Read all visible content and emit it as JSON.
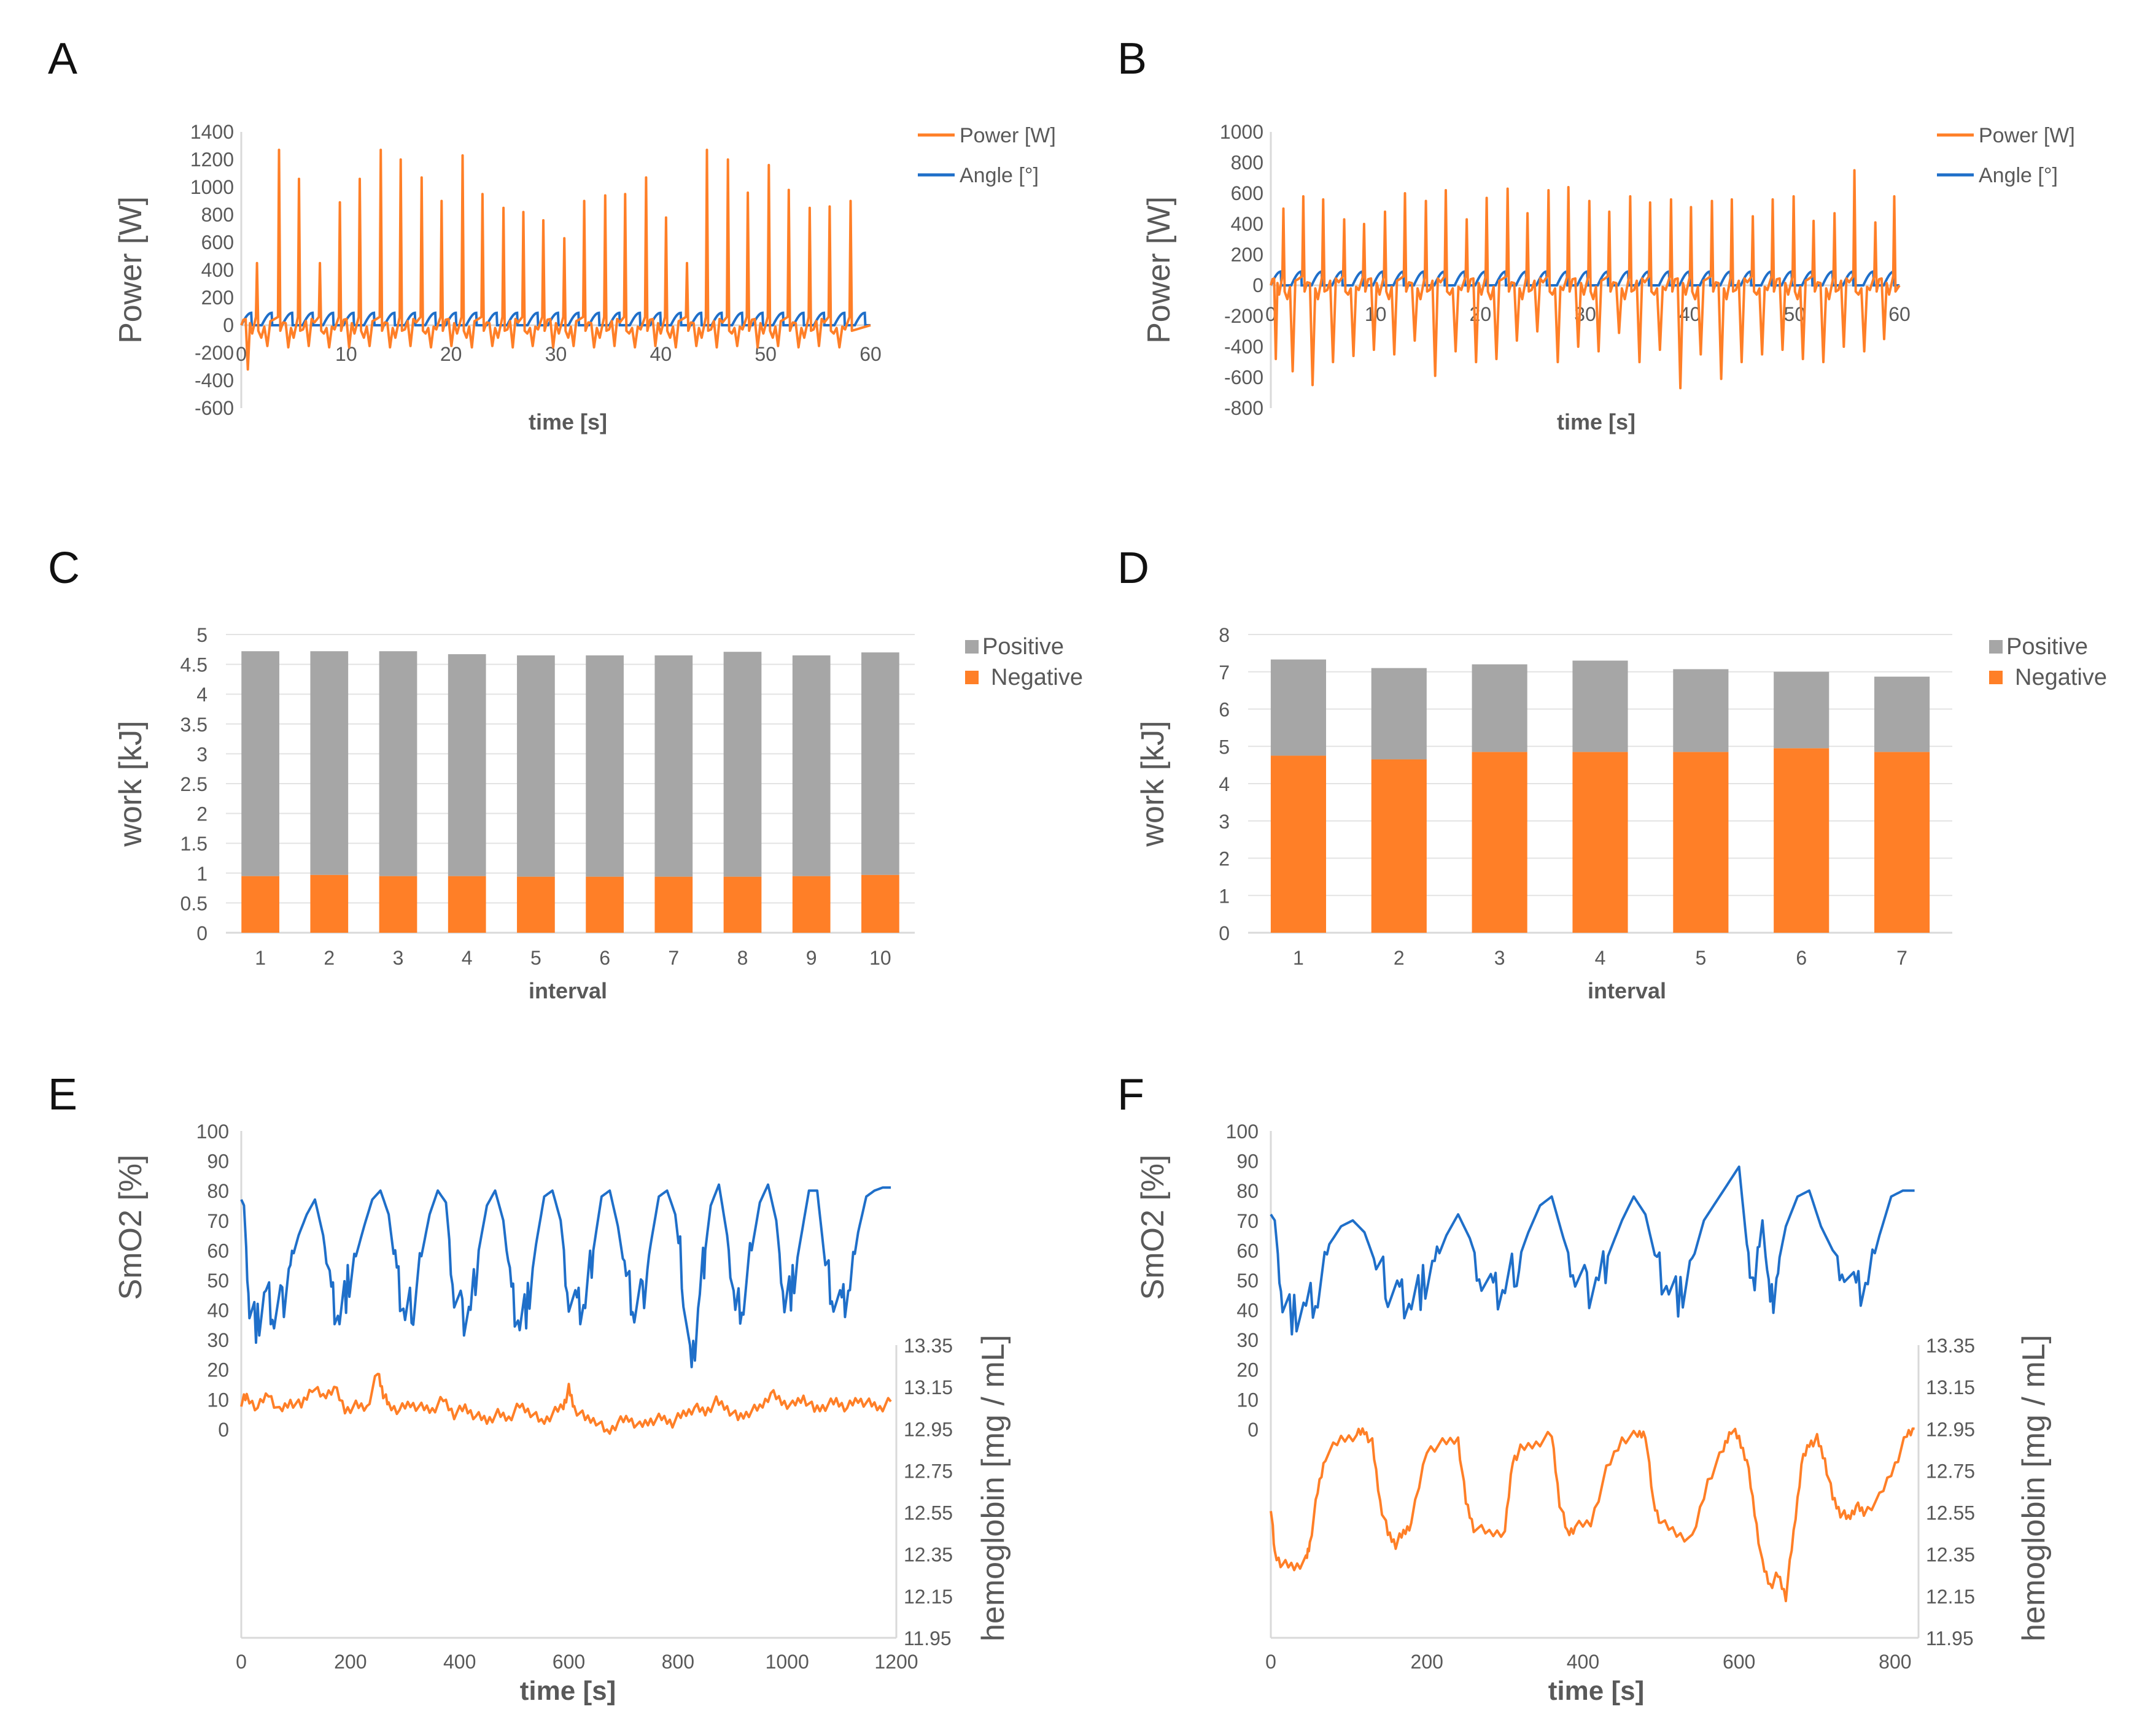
{
  "colors": {
    "orange": "#ff7f27",
    "blue": "#1f6fc9",
    "gray": "#a6a6a6",
    "text": "#595959",
    "axis": "#d9d9d9"
  },
  "chart_data": [
    {
      "panel": "A",
      "type": "line",
      "xlabel": "time [s]",
      "ylabel": "Power [W]",
      "xlim": [
        0,
        60
      ],
      "ylim": [
        -600,
        1400
      ],
      "xticks": [
        "0",
        "10",
        "20",
        "30",
        "40",
        "50",
        "60"
      ],
      "yticks": [
        "-600",
        "-400",
        "-200",
        "0",
        "200",
        "400",
        "600",
        "800",
        "1000",
        "1200",
        "1400"
      ],
      "legend": [
        "Power [W]",
        "Angle [°]"
      ],
      "series": [
        {
          "name": "Power [W]",
          "peak_times": [
            1.5,
            3.6,
            5.5,
            7.5,
            9.4,
            11.3,
            13.3,
            15.2,
            17.2,
            19.1,
            21.1,
            23.0,
            25.0,
            26.9,
            28.8,
            30.8,
            32.7,
            34.7,
            36.6,
            38.6,
            40.5,
            42.5,
            44.4,
            46.4,
            48.3,
            50.3,
            52.2,
            54.2,
            56.1,
            58.1
          ],
          "peak_values": [
            450,
            1270,
            1060,
            450,
            890,
            1060,
            1270,
            1200,
            1070,
            900,
            1230,
            950,
            850,
            820,
            760,
            630,
            900,
            940,
            950,
            1070,
            780,
            450,
            1270,
            1200,
            960,
            1160,
            980,
            850,
            860,
            900
          ],
          "min_values": [
            -320,
            -150,
            -160,
            -150,
            -160,
            -160,
            -150,
            -160,
            -150,
            -160,
            -150,
            -160,
            -150,
            -160,
            -150,
            -160,
            -150,
            -160,
            -150,
            -160,
            -150,
            -160,
            -150,
            -160,
            -150,
            -160,
            -150,
            -160,
            -150,
            -160
          ]
        },
        {
          "name": "Angle [°]",
          "min": 0,
          "max": 90,
          "period_s": 1.95
        }
      ]
    },
    {
      "panel": "B",
      "type": "line",
      "xlabel": "time [s]",
      "ylabel": "Power [W]",
      "xlim": [
        0,
        60
      ],
      "ylim": [
        -800,
        1000
      ],
      "xticks": [
        "0",
        "10",
        "20",
        "30",
        "40",
        "50",
        "60"
      ],
      "yticks": [
        "-800",
        "-600",
        "-400",
        "-200",
        "0",
        "200",
        "400",
        "600",
        "800",
        "1000"
      ],
      "legend": [
        "Power [W]",
        "Angle [°]"
      ],
      "series": [
        {
          "name": "Power [W]",
          "peak_times": [
            1.2,
            3.1,
            5.0,
            7.0,
            8.9,
            10.9,
            12.8,
            14.8,
            16.7,
            18.7,
            20.6,
            22.6,
            24.5,
            26.5,
            28.4,
            30.4,
            32.3,
            34.3,
            36.2,
            38.2,
            40.1,
            42.1,
            44.0,
            46.0,
            47.9,
            49.9,
            51.8,
            53.8,
            55.7,
            57.7,
            59.5
          ],
          "peak_values": [
            500,
            580,
            560,
            430,
            400,
            480,
            600,
            550,
            620,
            430,
            570,
            630,
            470,
            620,
            640,
            550,
            480,
            580,
            540,
            560,
            510,
            550,
            560,
            450,
            560,
            580,
            420,
            470,
            750,
            410,
            580
          ],
          "min_values": [
            -480,
            -560,
            -650,
            -500,
            -460,
            -420,
            -450,
            -360,
            -590,
            -430,
            -500,
            -480,
            -360,
            -300,
            -500,
            -400,
            -430,
            -310,
            -500,
            -420,
            -670,
            -450,
            -610,
            -500,
            -450,
            -420,
            -480,
            -500,
            -400,
            -430,
            -350
          ]
        },
        {
          "name": "Angle [°]",
          "min": 0,
          "max": 90,
          "period_s": 1.95
        }
      ]
    },
    {
      "panel": "C",
      "type": "bar",
      "stacked": true,
      "xlabel": "interval",
      "ylabel": "work [kJ]",
      "ylim": [
        0,
        5
      ],
      "yticks": [
        "0",
        "0.5",
        "1",
        "1.5",
        "2",
        "2.5",
        "3",
        "3.5",
        "4",
        "4.5",
        "5"
      ],
      "categories": [
        "1",
        "2",
        "3",
        "4",
        "5",
        "6",
        "7",
        "8",
        "9",
        "10"
      ],
      "legend": [
        "Positive",
        "Negative"
      ],
      "series": [
        {
          "name": "Negative",
          "values": [
            0.95,
            0.97,
            0.95,
            0.95,
            0.94,
            0.94,
            0.94,
            0.94,
            0.95,
            0.97
          ]
        },
        {
          "name": "Positive",
          "values": [
            3.77,
            3.75,
            3.77,
            3.72,
            3.71,
            3.71,
            3.71,
            3.77,
            3.7,
            3.73
          ]
        }
      ]
    },
    {
      "panel": "D",
      "type": "bar",
      "stacked": true,
      "xlabel": "interval",
      "ylabel": "work [kJ]",
      "ylim": [
        0,
        8
      ],
      "yticks": [
        "0",
        "1",
        "2",
        "3",
        "4",
        "5",
        "6",
        "7",
        "8"
      ],
      "categories": [
        "1",
        "2",
        "3",
        "4",
        "5",
        "6",
        "7"
      ],
      "legend": [
        "Positive",
        "Negative"
      ],
      "series": [
        {
          "name": "Negative",
          "values": [
            4.75,
            4.65,
            4.85,
            4.85,
            4.85,
            4.95,
            4.85
          ]
        },
        {
          "name": "Positive",
          "values": [
            2.58,
            2.45,
            2.35,
            2.45,
            2.22,
            2.05,
            2.02
          ]
        }
      ]
    },
    {
      "panel": "E",
      "type": "line",
      "xlabel": "time [s]",
      "ylabel": "SmO2 [%]",
      "ylabel_right": "hemoglobin [mg / mL]",
      "xlim": [
        0,
        1200
      ],
      "ylim": [
        -70,
        100
      ],
      "ylim_right": [
        11.95,
        13.35
      ],
      "xticks": [
        "0",
        "200",
        "400",
        "600",
        "800",
        "1000",
        "1200"
      ],
      "yticks": [
        "0",
        "10",
        "20",
        "30",
        "40",
        "50",
        "60",
        "70",
        "80",
        "90",
        "100"
      ],
      "yticks_right": [
        "11.95",
        "12.15",
        "12.35",
        "12.55",
        "12.75",
        "12.95",
        "13.15",
        "13.35"
      ],
      "series": [
        {
          "name": "SmO2",
          "axis": "left",
          "t": [
            0,
            5,
            15,
            30,
            45,
            60,
            75,
            90,
            105,
            120,
            135,
            150,
            165,
            180,
            195,
            210,
            225,
            240,
            255,
            270,
            285,
            300,
            315,
            330,
            345,
            360,
            375,
            390,
            405,
            420,
            435,
            450,
            465,
            480,
            495,
            510,
            525,
            540,
            555,
            570,
            585,
            600,
            615,
            630,
            645,
            660,
            675,
            690,
            705,
            720,
            735,
            750,
            765,
            780,
            795,
            810,
            825,
            840,
            850,
            860,
            875,
            890,
            905,
            920,
            935,
            950,
            965,
            980,
            995,
            1010,
            1025,
            1040,
            1055,
            1070,
            1085,
            1100,
            1115,
            1130,
            1145,
            1160,
            1175,
            1190
          ],
          "values": [
            77,
            75,
            40,
            35,
            45,
            38,
            42,
            55,
            65,
            72,
            77,
            65,
            45,
            38,
            48,
            58,
            68,
            77,
            80,
            72,
            50,
            38,
            42,
            58,
            72,
            80,
            76,
            45,
            38,
            40,
            60,
            75,
            80,
            70,
            45,
            36,
            42,
            62,
            78,
            80,
            70,
            45,
            40,
            42,
            60,
            78,
            80,
            68,
            50,
            40,
            44,
            62,
            78,
            80,
            72,
            48,
            18,
            48,
            60,
            75,
            82,
            65,
            40,
            44,
            60,
            76,
            82,
            70,
            42,
            48,
            64,
            80,
            80,
            55,
            45,
            40,
            48,
            66,
            78,
            80,
            81,
            81
          ]
        },
        {
          "name": "hemoglobin",
          "axis": "right",
          "t": [
            0,
            10,
            30,
            50,
            70,
            90,
            110,
            130,
            150,
            170,
            190,
            210,
            230,
            250,
            260,
            270,
            290,
            310,
            330,
            350,
            370,
            390,
            410,
            430,
            450,
            470,
            490,
            510,
            530,
            550,
            570,
            590,
            600,
            610,
            630,
            650,
            670,
            690,
            710,
            730,
            750,
            770,
            790,
            810,
            830,
            850,
            870,
            890,
            910,
            930,
            950,
            970,
            990,
            1010,
            1030,
            1050,
            1070,
            1090,
            1110,
            1130,
            1150,
            1170,
            1190
          ],
          "values": [
            13.08,
            13.1,
            13.05,
            13.12,
            13.03,
            13.08,
            13.06,
            13.15,
            13.1,
            13.15,
            13.04,
            13.06,
            13.05,
            13.22,
            13.12,
            13.06,
            13.04,
            13.07,
            13.05,
            13.04,
            13.09,
            13.02,
            13.05,
            13.01,
            12.99,
            13.02,
            13.0,
            13.06,
            13.03,
            12.98,
            13.02,
            13.06,
            13.14,
            13.05,
            13.0,
            12.99,
            12.93,
            12.98,
            13.0,
            12.96,
            12.99,
            13.0,
            12.98,
            13.02,
            13.05,
            13.03,
            13.08,
            13.05,
            13.0,
            13.03,
            13.05,
            13.12,
            13.08,
            13.06,
            13.1,
            13.04,
            13.06,
            13.08,
            13.05,
            13.09,
            13.07,
            13.05,
            13.08
          ]
        }
      ]
    },
    {
      "panel": "F",
      "type": "line",
      "xlabel": "time [s]",
      "ylabel": "SmO2 [%]",
      "ylabel_right": "hemoglobin [mg / mL]",
      "xlim": [
        0,
        830
      ],
      "ylim": [
        -70,
        100
      ],
      "ylim_right": [
        11.95,
        13.35
      ],
      "xticks": [
        "0",
        "200",
        "400",
        "600",
        "800"
      ],
      "yticks": [
        "0",
        "10",
        "20",
        "30",
        "40",
        "50",
        "60",
        "70",
        "80",
        "90",
        "100"
      ],
      "yticks_right": [
        "11.95",
        "12.15",
        "12.35",
        "12.55",
        "12.75",
        "12.95",
        "13.15",
        "13.35"
      ],
      "series": [
        {
          "name": "SmO2",
          "axis": "left",
          "t": [
            0,
            5,
            15,
            30,
            45,
            60,
            75,
            90,
            105,
            120,
            135,
            150,
            165,
            180,
            195,
            210,
            225,
            240,
            255,
            270,
            285,
            300,
            315,
            330,
            345,
            360,
            375,
            390,
            405,
            420,
            435,
            450,
            465,
            480,
            495,
            510,
            525,
            540,
            555,
            570,
            585,
            600,
            610,
            620,
            630,
            640,
            650,
            660,
            675,
            690,
            705,
            720,
            735,
            750,
            765,
            780,
            795,
            810,
            825
          ],
          "values": [
            72,
            70,
            42,
            38,
            40,
            45,
            62,
            68,
            70,
            66,
            55,
            48,
            45,
            43,
            48,
            55,
            65,
            72,
            64,
            52,
            45,
            47,
            55,
            66,
            75,
            78,
            64,
            52,
            47,
            50,
            60,
            70,
            78,
            72,
            55,
            48,
            44,
            56,
            70,
            76,
            82,
            88,
            62,
            48,
            70,
            40,
            55,
            68,
            78,
            80,
            68,
            60,
            55,
            45,
            50,
            65,
            78,
            80,
            80
          ]
        },
        {
          "name": "hemoglobin",
          "axis": "right",
          "t": [
            0,
            5,
            15,
            30,
            45,
            50,
            60,
            70,
            90,
            110,
            120,
            130,
            140,
            150,
            160,
            170,
            180,
            200,
            220,
            240,
            250,
            260,
            280,
            300,
            310,
            320,
            340,
            360,
            370,
            380,
            390,
            410,
            430,
            450,
            470,
            480,
            490,
            500,
            520,
            540,
            560,
            580,
            590,
            600,
            610,
            620,
            630,
            640,
            650,
            660,
            670,
            680,
            690,
            700,
            710,
            720,
            730,
            740,
            750,
            760,
            780,
            800,
            815,
            825
          ],
          "values": [
            12.58,
            12.35,
            12.3,
            12.29,
            12.32,
            12.4,
            12.65,
            12.82,
            12.9,
            12.92,
            12.94,
            12.88,
            12.6,
            12.45,
            12.4,
            12.45,
            12.5,
            12.85,
            12.88,
            12.9,
            12.6,
            12.48,
            12.45,
            12.46,
            12.8,
            12.85,
            12.88,
            12.92,
            12.6,
            12.45,
            12.48,
            12.5,
            12.75,
            12.9,
            12.92,
            12.93,
            12.6,
            12.5,
            12.45,
            12.42,
            12.7,
            12.85,
            12.95,
            12.9,
            12.8,
            12.55,
            12.3,
            12.2,
            12.25,
            12.15,
            12.45,
            12.78,
            12.88,
            12.9,
            12.8,
            12.62,
            12.55,
            12.52,
            12.58,
            12.55,
            12.62,
            12.78,
            12.92,
            12.95
          ]
        }
      ]
    }
  ]
}
